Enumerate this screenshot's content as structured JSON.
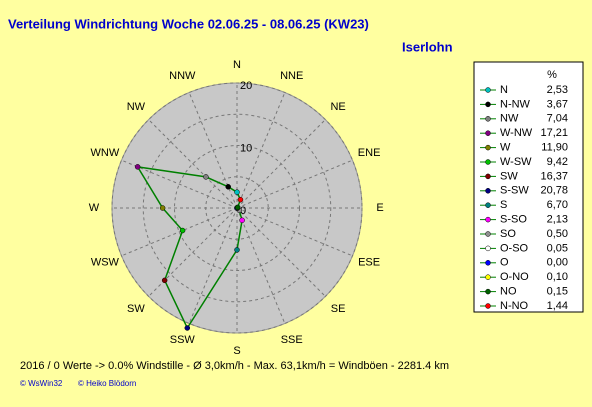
{
  "chart_data": {
    "type": "radar",
    "title": "Verteilung Windrichtung   Woche 02.06.25 - 08.06.25 (KW23)",
    "subtitle": "Iserlohn",
    "direction_labels": [
      "N",
      "NNE",
      "NE",
      "ENE",
      "E",
      "ESE",
      "SE",
      "SSE",
      "S",
      "SSW",
      "SW",
      "WSW",
      "W",
      "WNW",
      "NW",
      "NNW"
    ],
    "rlim": [
      0,
      20
    ],
    "rticks": [
      0,
      10,
      20
    ],
    "grid": true,
    "legend_unit": "%",
    "categories": [
      "N",
      "N-NW",
      "NW",
      "W-NW",
      "W",
      "W-SW",
      "SW",
      "S-SW",
      "S",
      "S-SO",
      "SO",
      "O-SO",
      "O",
      "O-NO",
      "NO",
      "N-NO"
    ],
    "values": [
      2.53,
      3.67,
      7.04,
      17.21,
      11.9,
      9.42,
      16.37,
      20.78,
      6.7,
      2.13,
      0.5,
      0.05,
      0.0,
      0.1,
      0.15,
      1.44
    ],
    "value_labels": [
      "2,53",
      "3,67",
      "7,04",
      "17,21",
      "11,90",
      "9,42",
      "16,37",
      "20,78",
      "6,70",
      "2,13",
      "0,50",
      "0,05",
      "0,00",
      "0,10",
      "0,15",
      "1,44"
    ],
    "color": "#008000",
    "point_colors": [
      "#00c0c0",
      "#000000",
      "#808080",
      "#800080",
      "#808000",
      "#00c000",
      "#800000",
      "#000080",
      "#008080",
      "#ff00ff",
      "#909090",
      "#ffffff",
      "#0000ff",
      "#ffff00",
      "#006000",
      "#ff0000"
    ],
    "footer": "2016 / 0 Werte  -> 0.0% Windstille   -   Ø 3,0km/h  -  Max. 63,1km/h = Windböen   -   2281.4 km",
    "credits": [
      "© WsWin32",
      "© Heiko Blödorn"
    ]
  }
}
